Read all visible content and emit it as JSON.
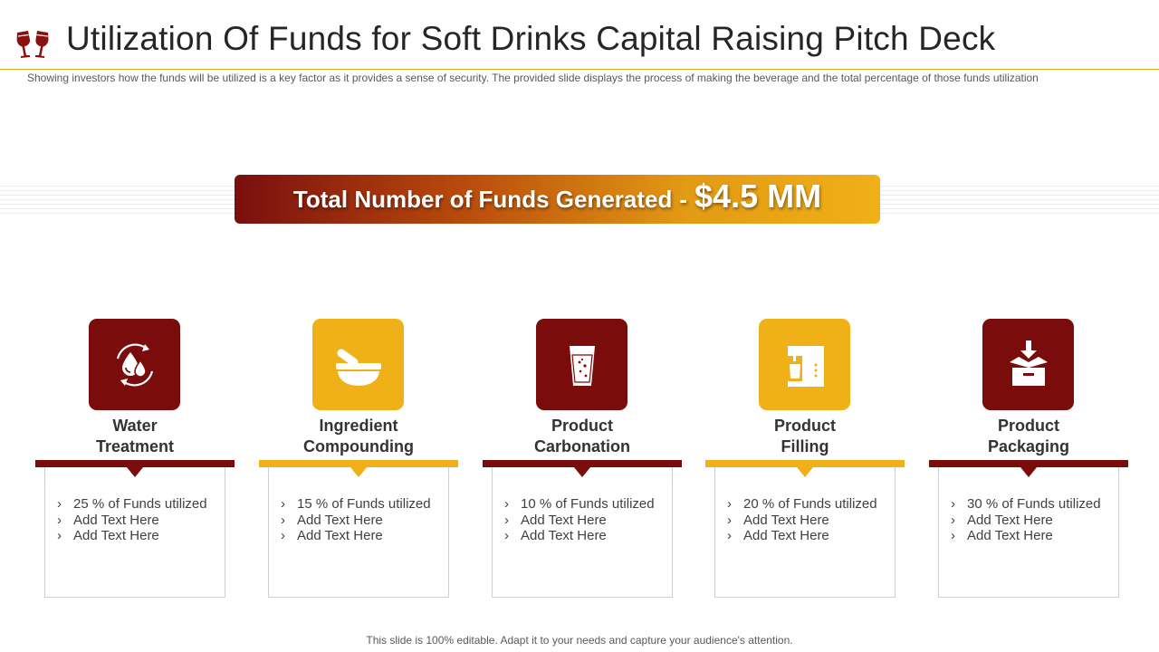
{
  "header": {
    "title": "Utilization Of Funds for Soft Drinks Capital Raising Pitch Deck",
    "subtitle": "Showing investors how the funds will be utilized is a key factor as it provides  a sense of security. The  provided  slide displays the process of making the beverage  and the total percentage  of those funds utilization"
  },
  "banner": {
    "label": "Total Number of Funds Generated",
    "separator": "-",
    "amount": "$4.5 MM"
  },
  "colors": {
    "dark_red": "#7a0c0c",
    "gold": "#f0b017"
  },
  "columns": [
    {
      "title_line1": "Water",
      "title_line2": "Treatment",
      "icon": "water-treatment-icon",
      "theme": "dark",
      "items": [
        "25 % of Funds utilized",
        "Add Text Here",
        "Add Text Here"
      ]
    },
    {
      "title_line1": "Ingredient",
      "title_line2": "Compounding",
      "icon": "mortar-pestle-icon",
      "theme": "gold",
      "items": [
        "15 % of Funds utilized",
        "Add Text Here",
        "Add Text Here"
      ]
    },
    {
      "title_line1": "Product",
      "title_line2": "Carbonation",
      "icon": "glass-icon",
      "theme": "dark",
      "items": [
        "10 % of Funds utilized",
        "Add Text Here",
        "Add Text Here"
      ]
    },
    {
      "title_line1": "Product",
      "title_line2": "Filling",
      "icon": "filling-machine-icon",
      "theme": "gold",
      "items": [
        "20 % of Funds utilized",
        "Add Text Here",
        "Add Text Here"
      ]
    },
    {
      "title_line1": "Product",
      "title_line2": "Packaging",
      "icon": "packaging-box-icon",
      "theme": "dark",
      "items": [
        "30 % of Funds utilized",
        "Add Text Here",
        "Add Text Here"
      ]
    }
  ],
  "footer": {
    "note": "This slide is 100% editable. Adapt it to your needs and capture your audience's attention."
  }
}
